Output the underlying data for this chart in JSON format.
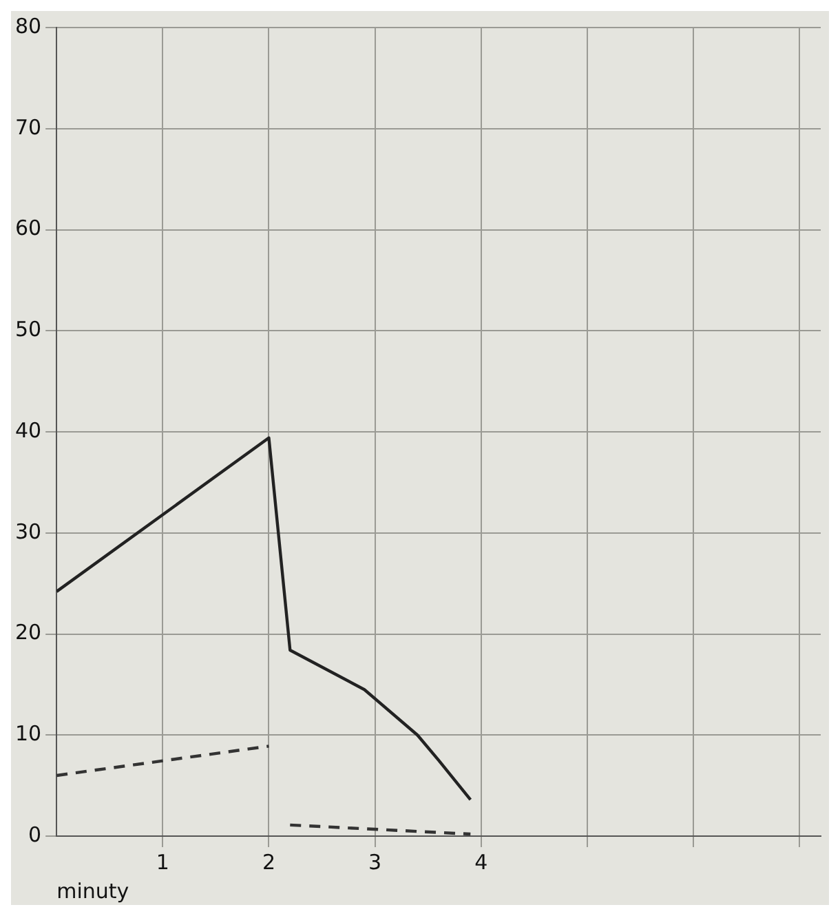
{
  "chart_data": {
    "type": "line",
    "xlabel": "minuty",
    "xlim": [
      0,
      7.2
    ],
    "xticks": [
      1,
      2,
      3,
      4,
      {
        "value": 5,
        "label": null
      },
      {
        "value": 6,
        "label": null
      },
      {
        "value": 7,
        "label": null
      }
    ],
    "ylim": [
      0,
      80
    ],
    "yticks": [
      0,
      10,
      20,
      30,
      40,
      50,
      60,
      70,
      80
    ],
    "grid": true,
    "legend": false,
    "marker": "none",
    "series": [
      {
        "color": "#222222",
        "line_style": "solid",
        "x": [
          0,
          2,
          2.2,
          2.9,
          3.4,
          3.6,
          3.9
        ],
        "values": [
          24.2,
          39.4,
          18.4,
          14.5,
          10,
          7.5,
          3.6
        ]
      },
      {
        "color": "#333333",
        "line_style": "dashed",
        "x": [
          0,
          2,
          2.1,
          2.2,
          3.9
        ],
        "values": [
          6,
          8.9,
          null,
          1.1,
          0.2
        ]
      }
    ]
  }
}
